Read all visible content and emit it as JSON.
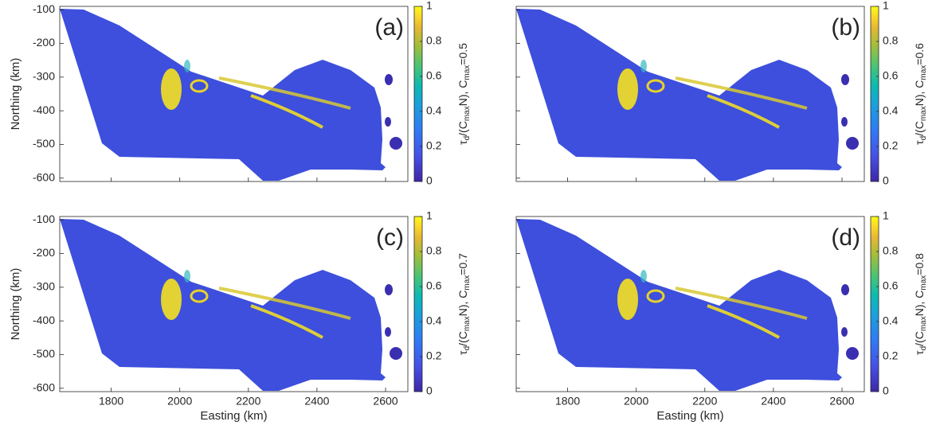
{
  "chart_data": [
    {
      "type": "heatmap",
      "panel_label": "(a)",
      "ylabel": "Northing (km)",
      "xlim": [
        1650,
        2665
      ],
      "ylim": [
        -610,
        -90
      ],
      "xticks": [
        1800,
        2000,
        2200,
        2400,
        2600
      ],
      "yticks": [
        -100,
        -200,
        -300,
        -400,
        -500,
        -600
      ],
      "xtick_labels": false,
      "ytick_labels": true,
      "colormap": "parula",
      "clim": [
        0,
        1
      ],
      "cticks": [
        0,
        0.2,
        0.4,
        0.6,
        0.8,
        1
      ],
      "colorbar_label": [
        "τ",
        "d",
        "/(C",
        "max",
        "N), C",
        "max",
        "=0.5"
      ]
    },
    {
      "type": "heatmap",
      "panel_label": "(b)",
      "xlim": [
        1650,
        2665
      ],
      "ylim": [
        -610,
        -90
      ],
      "xticks": [
        1800,
        2000,
        2200,
        2400,
        2600
      ],
      "yticks": [
        -100,
        -200,
        -300,
        -400,
        -500,
        -600
      ],
      "xtick_labels": false,
      "ytick_labels": false,
      "colormap": "parula",
      "clim": [
        0,
        1
      ],
      "cticks": [
        0,
        0.2,
        0.4,
        0.6,
        0.8,
        1
      ],
      "colorbar_label": [
        "τ",
        "d",
        "/(C",
        "max",
        "N), C",
        "max",
        "=0.6"
      ]
    },
    {
      "type": "heatmap",
      "panel_label": "(c)",
      "xlabel": "Easting (km)",
      "ylabel": "Northing (km)",
      "xlim": [
        1650,
        2665
      ],
      "ylim": [
        -610,
        -90
      ],
      "xticks": [
        1800,
        2000,
        2200,
        2400,
        2600
      ],
      "yticks": [
        -100,
        -200,
        -300,
        -400,
        -500,
        -600
      ],
      "xtick_labels": true,
      "ytick_labels": true,
      "colormap": "parula",
      "clim": [
        0,
        1
      ],
      "cticks": [
        0,
        0.2,
        0.4,
        0.6,
        0.8,
        1
      ],
      "colorbar_label": [
        "τ",
        "d",
        "/(C",
        "max",
        "N), C",
        "max",
        "=0.7"
      ]
    },
    {
      "type": "heatmap",
      "panel_label": "(d)",
      "xlabel": "Easting (km)",
      "xlim": [
        1650,
        2665
      ],
      "ylim": [
        -610,
        -90
      ],
      "xticks": [
        1800,
        2000,
        2200,
        2400,
        2600
      ],
      "yticks": [
        -100,
        -200,
        -300,
        -400,
        -500,
        -600
      ],
      "xtick_labels": true,
      "ytick_labels": false,
      "colormap": "parula",
      "clim": [
        0,
        1
      ],
      "cticks": [
        0,
        0.2,
        0.4,
        0.6,
        0.8,
        1
      ],
      "colorbar_label": [
        "τ",
        "d",
        "/(C",
        "max",
        "N), C",
        "max",
        "=0.8"
      ]
    }
  ]
}
